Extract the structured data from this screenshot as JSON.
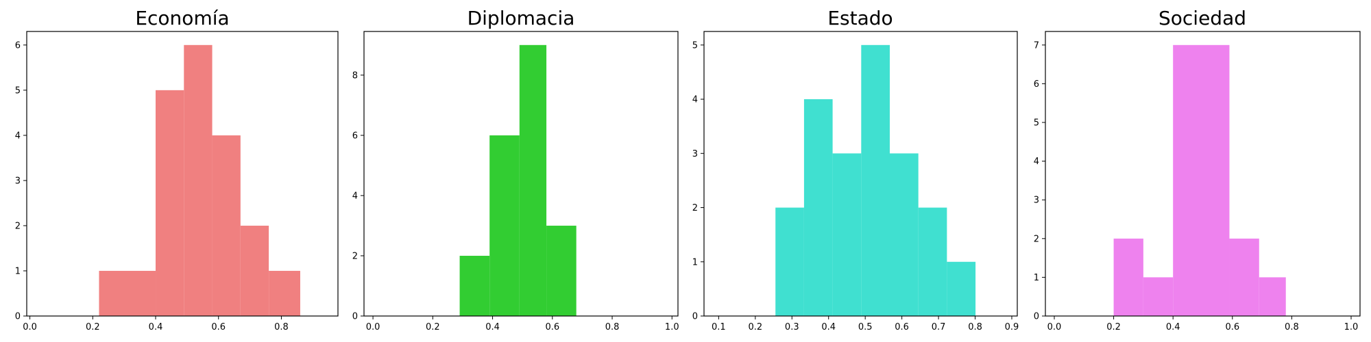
{
  "chart_data": [
    {
      "type": "bar",
      "title": "Economía",
      "color": "#F08080",
      "xlim": [
        -0.01,
        0.98
      ],
      "ylim": [
        0,
        6.3
      ],
      "x_ticks": [
        "0.0",
        "0.2",
        "0.4",
        "0.6",
        "0.8"
      ],
      "y_ticks": [
        "0",
        "1",
        "2",
        "3",
        "4",
        "5",
        "6"
      ],
      "bins": [
        {
          "start": 0.22,
          "end": 0.4,
          "count": 1
        },
        {
          "start": 0.4,
          "end": 0.49,
          "count": 5
        },
        {
          "start": 0.49,
          "end": 0.58,
          "count": 6
        },
        {
          "start": 0.58,
          "end": 0.67,
          "count": 4
        },
        {
          "start": 0.67,
          "end": 0.76,
          "count": 2
        },
        {
          "start": 0.76,
          "end": 0.86,
          "count": 1
        }
      ]
    },
    {
      "type": "bar",
      "title": "Diplomacia",
      "color": "#32CD32",
      "xlim": [
        -0.03,
        1.02
      ],
      "ylim": [
        0,
        9.45
      ],
      "x_ticks": [
        "0.0",
        "0.2",
        "0.4",
        "0.6",
        "0.8",
        "1.0"
      ],
      "y_ticks": [
        "0",
        "2",
        "4",
        "6",
        "8"
      ],
      "bins": [
        {
          "start": 0.29,
          "end": 0.39,
          "count": 2
        },
        {
          "start": 0.39,
          "end": 0.49,
          "count": 6
        },
        {
          "start": 0.49,
          "end": 0.58,
          "count": 9
        },
        {
          "start": 0.58,
          "end": 0.68,
          "count": 3
        }
      ]
    },
    {
      "type": "bar",
      "title": "Estado",
      "color": "#40E0D0",
      "xlim": [
        0.06,
        0.915
      ],
      "ylim": [
        0,
        5.25
      ],
      "x_ticks": [
        "0.1",
        "0.2",
        "0.3",
        "0.4",
        "0.5",
        "0.6",
        "0.7",
        "0.8",
        "0.9"
      ],
      "y_ticks": [
        "0",
        "1",
        "2",
        "3",
        "4",
        "5"
      ],
      "bins": [
        {
          "start": 0.255,
          "end": 0.333,
          "count": 2
        },
        {
          "start": 0.333,
          "end": 0.411,
          "count": 4
        },
        {
          "start": 0.411,
          "end": 0.489,
          "count": 3
        },
        {
          "start": 0.489,
          "end": 0.567,
          "count": 5
        },
        {
          "start": 0.567,
          "end": 0.645,
          "count": 3
        },
        {
          "start": 0.645,
          "end": 0.723,
          "count": 2
        },
        {
          "start": 0.723,
          "end": 0.801,
          "count": 1
        }
      ]
    },
    {
      "type": "bar",
      "title": "Sociedad",
      "color": "#EE82EE",
      "xlim": [
        -0.03,
        1.03
      ],
      "ylim": [
        0,
        7.35
      ],
      "x_ticks": [
        "0.0",
        "0.2",
        "0.4",
        "0.6",
        "0.8",
        "1.0"
      ],
      "y_ticks": [
        "0",
        "1",
        "2",
        "3",
        "4",
        "5",
        "6",
        "7"
      ],
      "bins": [
        {
          "start": 0.2,
          "end": 0.3,
          "count": 2
        },
        {
          "start": 0.3,
          "end": 0.4,
          "count": 1
        },
        {
          "start": 0.4,
          "end": 0.59,
          "count": 7
        },
        {
          "start": 0.59,
          "end": 0.69,
          "count": 2
        },
        {
          "start": 0.69,
          "end": 0.78,
          "count": 1
        }
      ]
    }
  ]
}
